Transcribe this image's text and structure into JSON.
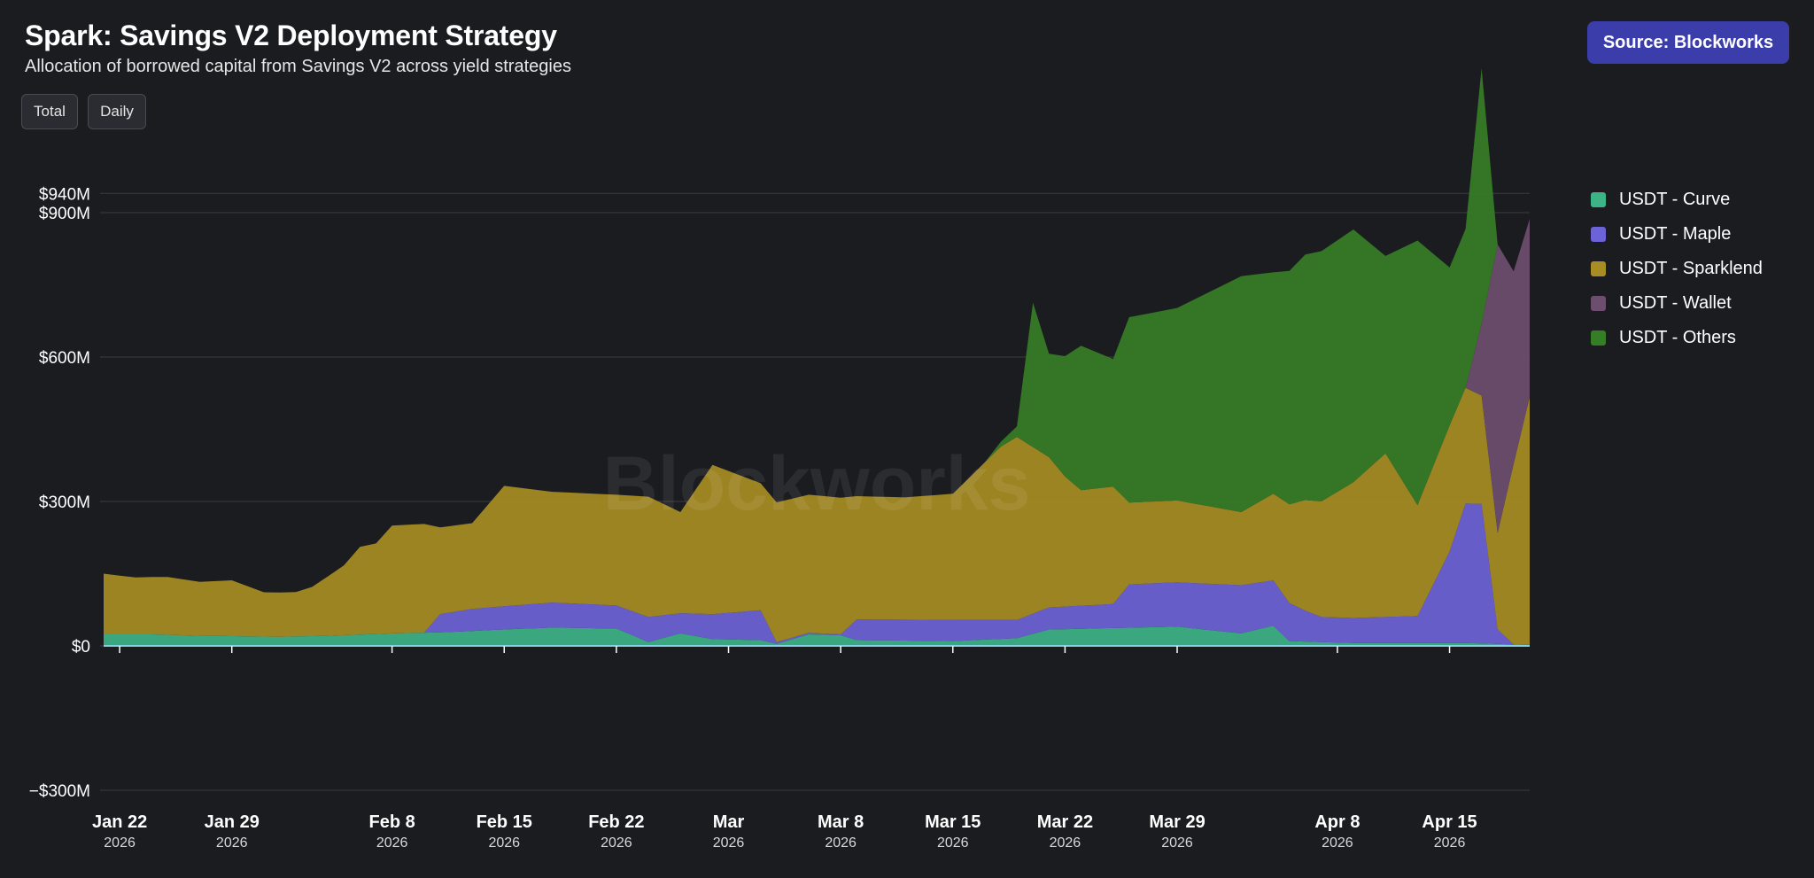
{
  "header": {
    "title": "Spark: Savings V2 Deployment Strategy",
    "subtitle": "Allocation of borrowed capital from Savings V2 across yield strategies"
  },
  "toggles": {
    "total_label": "Total",
    "daily_label": "Daily"
  },
  "source": {
    "label": "Source: Blockworks",
    "color": "#3b3dab"
  },
  "watermark": "Blockworks",
  "chart_data": {
    "type": "area",
    "stacked": true,
    "title": "Spark: Savings V2 Deployment Strategy",
    "subtitle": "Allocation of borrowed capital from Savings V2 across yield strategies",
    "x_range": [
      "2026-01-21",
      "2026-04-20"
    ],
    "ylim": [
      -300,
      940
    ],
    "y_unit": "$M",
    "grid": true,
    "legend_position": "right",
    "y_ticks": [
      {
        "value": 940,
        "label": "$940M"
      },
      {
        "value": 900,
        "label": "$900M"
      },
      {
        "value": 600,
        "label": "$600M"
      },
      {
        "value": 300,
        "label": "$300M"
      },
      {
        "value": 0,
        "label": "$0"
      },
      {
        "value": -300,
        "label": "−$300M"
      }
    ],
    "x_ticks": [
      {
        "date": "2026-01-22",
        "label": "Jan 22",
        "year": "2026"
      },
      {
        "date": "2026-01-29",
        "label": "Jan 29",
        "year": "2026"
      },
      {
        "date": "2026-02-08",
        "label": "Feb 8",
        "year": "2026"
      },
      {
        "date": "2026-02-15",
        "label": "Feb 15",
        "year": "2026"
      },
      {
        "date": "2026-02-22",
        "label": "Feb 22",
        "year": "2026"
      },
      {
        "date": "2026-03-01",
        "label": "Mar",
        "year": "2026"
      },
      {
        "date": "2026-03-08",
        "label": "Mar 8",
        "year": "2026"
      },
      {
        "date": "2026-03-15",
        "label": "Mar 15",
        "year": "2026"
      },
      {
        "date": "2026-03-22",
        "label": "Mar 22",
        "year": "2026"
      },
      {
        "date": "2026-03-29",
        "label": "Mar 29",
        "year": "2026"
      },
      {
        "date": "2026-04-08",
        "label": "Apr 8",
        "year": "2026"
      },
      {
        "date": "2026-04-15",
        "label": "Apr 15",
        "year": "2026"
      }
    ],
    "series": [
      {
        "name": "USDT - Curve",
        "color": "#3db388",
        "points": [
          [
            "2026-01-21",
            24
          ],
          [
            "2026-01-24",
            24
          ],
          [
            "2026-01-27",
            21
          ],
          [
            "2026-02-01",
            19
          ],
          [
            "2026-02-04",
            21
          ],
          [
            "2026-02-08",
            26
          ],
          [
            "2026-02-11",
            28
          ],
          [
            "2026-02-15",
            34
          ],
          [
            "2026-02-18",
            38
          ],
          [
            "2026-02-22",
            36
          ],
          [
            "2026-02-24",
            8
          ],
          [
            "2026-02-26",
            26
          ],
          [
            "2026-02-28",
            14
          ],
          [
            "2026-03-03",
            12
          ],
          [
            "2026-03-04",
            4
          ],
          [
            "2026-03-06",
            24
          ],
          [
            "2026-03-08",
            22
          ],
          [
            "2026-03-09",
            12
          ],
          [
            "2026-03-15",
            10
          ],
          [
            "2026-03-19",
            16
          ],
          [
            "2026-03-21",
            34
          ],
          [
            "2026-03-29",
            40
          ],
          [
            "2026-04-02",
            26
          ],
          [
            "2026-04-04",
            42
          ],
          [
            "2026-04-05",
            10
          ],
          [
            "2026-04-07",
            8
          ],
          [
            "2026-04-09",
            6
          ],
          [
            "2026-04-16",
            6
          ],
          [
            "2026-04-18",
            4
          ],
          [
            "2026-04-20",
            2
          ]
        ]
      },
      {
        "name": "USDT - Maple",
        "color": "#6c63d8",
        "points": [
          [
            "2026-01-21",
            0
          ],
          [
            "2026-02-10",
            0
          ],
          [
            "2026-02-11",
            38
          ],
          [
            "2026-02-13",
            46
          ],
          [
            "2026-02-18",
            52
          ],
          [
            "2026-02-22",
            48
          ],
          [
            "2026-02-24",
            52
          ],
          [
            "2026-02-26",
            42
          ],
          [
            "2026-02-28",
            52
          ],
          [
            "2026-03-03",
            62
          ],
          [
            "2026-03-04",
            4
          ],
          [
            "2026-03-08",
            2
          ],
          [
            "2026-03-09",
            43
          ],
          [
            "2026-03-15",
            44
          ],
          [
            "2026-03-19",
            38
          ],
          [
            "2026-03-21",
            46
          ],
          [
            "2026-03-25",
            50
          ],
          [
            "2026-03-26",
            90
          ],
          [
            "2026-03-29",
            92
          ],
          [
            "2026-04-02",
            100
          ],
          [
            "2026-04-04",
            94
          ],
          [
            "2026-04-06",
            64
          ],
          [
            "2026-04-07",
            52
          ],
          [
            "2026-04-09",
            52
          ],
          [
            "2026-04-13",
            56
          ],
          [
            "2026-04-15",
            190
          ],
          [
            "2026-04-16",
            290
          ],
          [
            "2026-04-17",
            290
          ],
          [
            "2026-04-18",
            30
          ],
          [
            "2026-04-19",
            0
          ],
          [
            "2026-04-20",
            0
          ]
        ]
      },
      {
        "name": "USDT - Sparklend",
        "color": "#a88d24",
        "points": [
          [
            "2026-01-21",
            126
          ],
          [
            "2026-01-23",
            118
          ],
          [
            "2026-01-25",
            120
          ],
          [
            "2026-01-27",
            112
          ],
          [
            "2026-01-29",
            116
          ],
          [
            "2026-01-31",
            92
          ],
          [
            "2026-02-02",
            92
          ],
          [
            "2026-02-03",
            102
          ],
          [
            "2026-02-05",
            145
          ],
          [
            "2026-02-06",
            182
          ],
          [
            "2026-02-07",
            188
          ],
          [
            "2026-02-08",
            224
          ],
          [
            "2026-02-10",
            226
          ],
          [
            "2026-02-11",
            180
          ],
          [
            "2026-02-13",
            178
          ],
          [
            "2026-02-15",
            250
          ],
          [
            "2026-02-18",
            230
          ],
          [
            "2026-02-22",
            230
          ],
          [
            "2026-02-24",
            250
          ],
          [
            "2026-02-26",
            210
          ],
          [
            "2026-02-28",
            310
          ],
          [
            "2026-03-03",
            264
          ],
          [
            "2026-03-04",
            290
          ],
          [
            "2026-03-08",
            284
          ],
          [
            "2026-03-09",
            256
          ],
          [
            "2026-03-12",
            254
          ],
          [
            "2026-03-15",
            262
          ],
          [
            "2026-03-18",
            360
          ],
          [
            "2026-03-19",
            380
          ],
          [
            "2026-03-21",
            312
          ],
          [
            "2026-03-22",
            270
          ],
          [
            "2026-03-23",
            240
          ],
          [
            "2026-03-25",
            244
          ],
          [
            "2026-03-26",
            170
          ],
          [
            "2026-03-29",
            170
          ],
          [
            "2026-04-02",
            152
          ],
          [
            "2026-04-04",
            180
          ],
          [
            "2026-04-06",
            230
          ],
          [
            "2026-04-07",
            240
          ],
          [
            "2026-04-09",
            282
          ],
          [
            "2026-04-11",
            340
          ],
          [
            "2026-04-13",
            230
          ],
          [
            "2026-04-15",
            262
          ],
          [
            "2026-04-16",
            240
          ],
          [
            "2026-04-17",
            225
          ],
          [
            "2026-04-18",
            200
          ],
          [
            "2026-04-19",
            375
          ],
          [
            "2026-04-20",
            515
          ]
        ]
      },
      {
        "name": "USDT - Wallet",
        "color": "#6d4e6e",
        "points": [
          [
            "2026-01-21",
            0
          ],
          [
            "2026-04-16",
            0
          ],
          [
            "2026-04-17",
            150
          ],
          [
            "2026-04-18",
            600
          ],
          [
            "2026-04-19",
            400
          ],
          [
            "2026-04-20",
            370
          ]
        ]
      },
      {
        "name": "USDT - Others",
        "color": "#367e26",
        "points": [
          [
            "2026-01-21",
            0
          ],
          [
            "2026-03-17",
            0
          ],
          [
            "2026-03-18",
            10
          ],
          [
            "2026-03-19",
            22
          ],
          [
            "2026-03-20",
            300
          ],
          [
            "2026-03-21",
            215
          ],
          [
            "2026-03-22",
            250
          ],
          [
            "2026-03-23",
            300
          ],
          [
            "2026-03-25",
            265
          ],
          [
            "2026-03-26",
            385
          ],
          [
            "2026-03-29",
            400
          ],
          [
            "2026-04-02",
            490
          ],
          [
            "2026-04-04",
            460
          ],
          [
            "2026-04-06",
            510
          ],
          [
            "2026-04-07",
            520
          ],
          [
            "2026-04-09",
            525
          ],
          [
            "2026-04-11",
            410
          ],
          [
            "2026-04-13",
            550
          ],
          [
            "2026-04-15",
            328
          ],
          [
            "2026-04-16",
            330
          ],
          [
            "2026-04-17",
            530
          ],
          [
            "2026-04-18",
            0
          ],
          [
            "2026-04-20",
            0
          ]
        ]
      }
    ]
  }
}
